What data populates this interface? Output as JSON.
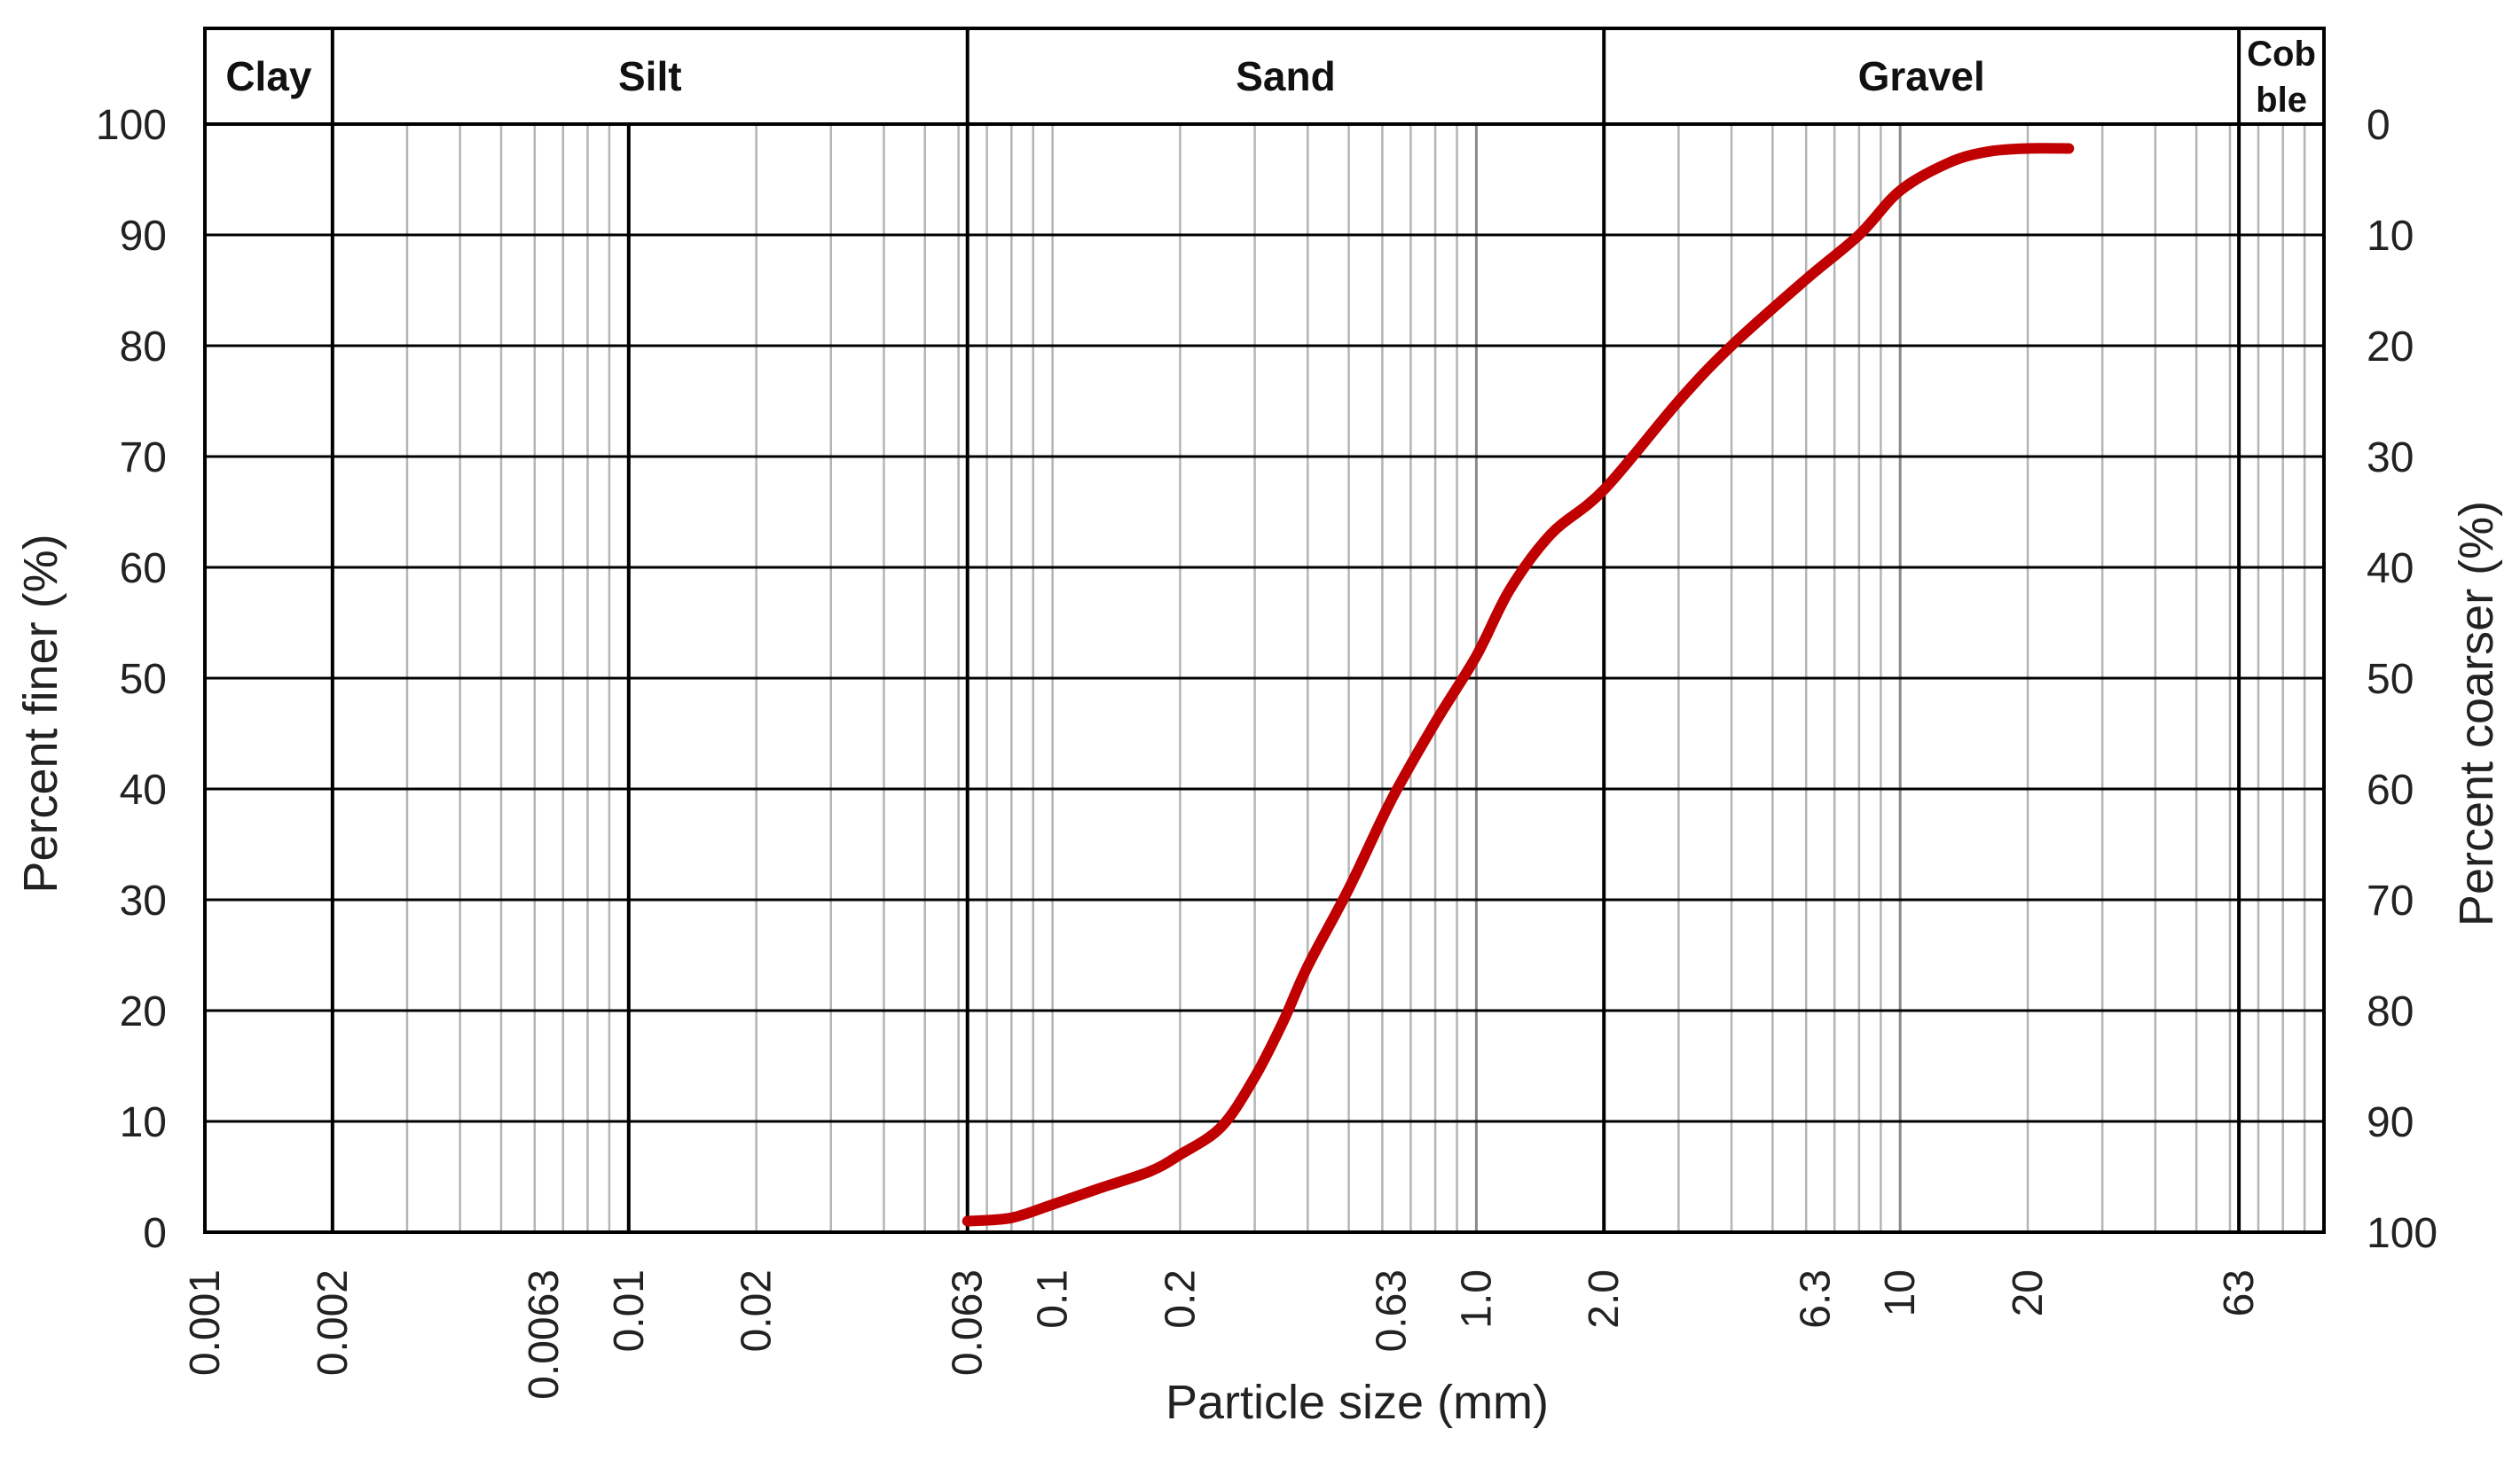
{
  "chart_data": {
    "type": "line",
    "title": "",
    "xlabel": "Particle size (mm)",
    "ylabel": "Percent finer (%)",
    "ylabel_right": "Percent coarser (%)",
    "x_scale": "log",
    "xlim": [
      0.001,
      100
    ],
    "ylim": [
      0,
      100
    ],
    "grid": true,
    "x_tick_labels": [
      "0.001",
      "0.002",
      "0.0063",
      "0.01",
      "0.02",
      "0.063",
      "0.1",
      "0.2",
      "0.63",
      "1.0",
      "2.0",
      "6.3",
      "10",
      "20",
      "63"
    ],
    "x_tick_values": [
      0.001,
      0.002,
      0.0063,
      0.01,
      0.02,
      0.063,
      0.1,
      0.2,
      0.63,
      1.0,
      2.0,
      6.3,
      10,
      20,
      63
    ],
    "y_ticks_left": [
      "0",
      "10",
      "20",
      "30",
      "40",
      "50",
      "60",
      "70",
      "80",
      "90",
      "100"
    ],
    "y_ticks_right": [
      "100",
      "90",
      "80",
      "70",
      "60",
      "50",
      "40",
      "30",
      "20",
      "10",
      "0"
    ],
    "bands": [
      {
        "label": "Clay",
        "from": 0.001,
        "to": 0.002
      },
      {
        "label": "Silt",
        "from": 0.002,
        "to": 0.063
      },
      {
        "label": "Sand",
        "from": 0.063,
        "to": 2.0
      },
      {
        "label": "Gravel",
        "from": 2.0,
        "to": 63
      },
      {
        "label": "Cob ble",
        "from": 63,
        "to": 100
      }
    ],
    "series": [
      {
        "color": "#c00000",
        "x": [
          0.063,
          0.08,
          0.1,
          0.13,
          0.17,
          0.2,
          0.25,
          0.3,
          0.35,
          0.4,
          0.5,
          0.63,
          0.8,
          1.0,
          1.2,
          1.5,
          2.0,
          3.0,
          4.0,
          6.0,
          8.0,
          10,
          13,
          16,
          20,
          25
        ],
        "y": [
          1,
          1.3,
          2.5,
          4,
          5.5,
          7,
          9.5,
          14,
          19,
          24,
          31,
          39,
          46,
          52,
          58,
          63,
          67,
          75,
          80,
          86,
          90,
          94,
          96.5,
          97.5,
          97.8,
          97.8
        ]
      }
    ]
  }
}
